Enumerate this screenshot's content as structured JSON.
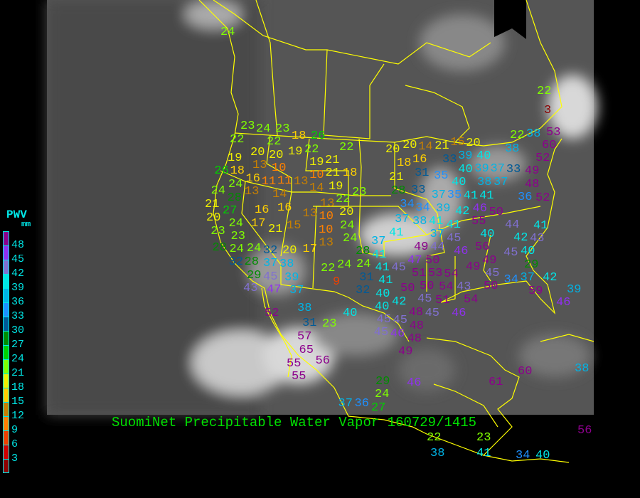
{
  "title": "SuomiNet Precipitable Water Vapor 160729/1415",
  "legend": {
    "title": "PWV",
    "unit": "mm",
    "ticks": [
      "48",
      "45",
      "42",
      "39",
      "36",
      "33",
      "30",
      "27",
      "24",
      "21",
      "18",
      "15",
      "12",
      "9",
      "6",
      "3"
    ],
    "colors": [
      "#8c008c",
      "#9030f0",
      "#8070d0",
      "#00e6e6",
      "#00b4e6",
      "#1e90ff",
      "#005a96",
      "#008c00",
      "#00d000",
      "#80ff00",
      "#f0f000",
      "#ffd000",
      "#c88000",
      "#ff8000",
      "#f04000",
      "#d00000",
      "#8b0000"
    ]
  },
  "map": {
    "background_color": "#555555",
    "border_color": "#ffff00",
    "stations": [
      24,
      22,
      23,
      24,
      22,
      23,
      20,
      18,
      26,
      19,
      22,
      22,
      19,
      20,
      13,
      10,
      16,
      19,
      10,
      21,
      26,
      18,
      11,
      11,
      13,
      14,
      21,
      18,
      24,
      24,
      13,
      19,
      23,
      14,
      13,
      22,
      21,
      28,
      16,
      20,
      27,
      16,
      13,
      10,
      24,
      20,
      24,
      17,
      21,
      15,
      10,
      24,
      23,
      23,
      24,
      13,
      28,
      24,
      17,
      28,
      37,
      32,
      32,
      37,
      20,
      24,
      41,
      28,
      38,
      22,
      24,
      31,
      29,
      45,
      39,
      43,
      9,
      37,
      41,
      47,
      32,
      40,
      20,
      20,
      18,
      16,
      14,
      21,
      15,
      20,
      22,
      38,
      53,
      38,
      60,
      52,
      33,
      39,
      40,
      31,
      35,
      40,
      39,
      37,
      33,
      21,
      49,
      28,
      33,
      40,
      38,
      37,
      48,
      36,
      52,
      35,
      41,
      41,
      34,
      37,
      42,
      46,
      50,
      34,
      39,
      55,
      37,
      38,
      41,
      41,
      44,
      41,
      41,
      37,
      45,
      40,
      56,
      42,
      43,
      44,
      49,
      46,
      49,
      45,
      40,
      45,
      29,
      50,
      45,
      47,
      49,
      53,
      54,
      51,
      50,
      34,
      37,
      42,
      41,
      50,
      50,
      54,
      43,
      59,
      39,
      40,
      42,
      45,
      51,
      54,
      46,
      45,
      45,
      48,
      46,
      38,
      52,
      40,
      45,
      48,
      45,
      48,
      31,
      23,
      57,
      46,
      49,
      65,
      56,
      55,
      55,
      29,
      46,
      24,
      37,
      36,
      27,
      22,
      38,
      23,
      41,
      34,
      40,
      56,
      60,
      61,
      38,
      22,
      3
    ]
  }
}
